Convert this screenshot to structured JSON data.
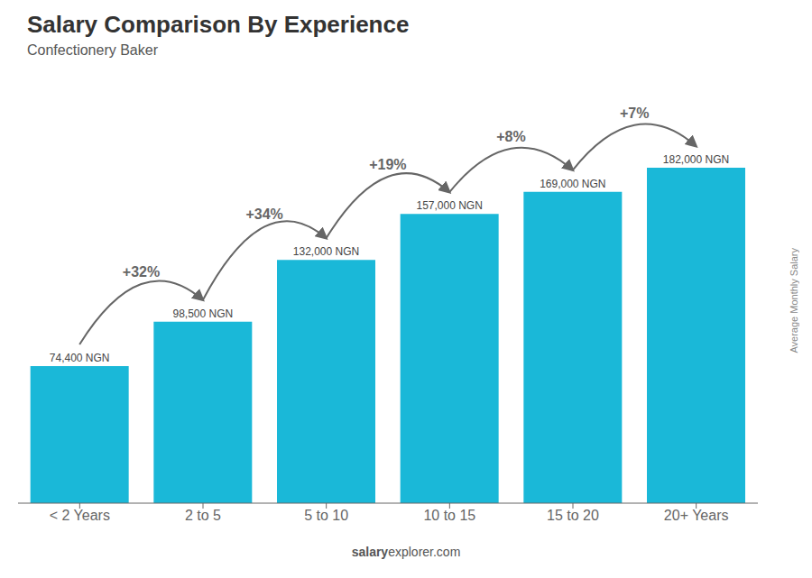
{
  "chart_data": {
    "type": "bar",
    "title": "Salary Comparison By Experience",
    "subtitle": "Confectionery Baker",
    "categories": [
      "< 2 Years",
      "2 to 5",
      "5 to 10",
      "10 to 15",
      "15 to 20",
      "20+ Years"
    ],
    "values": [
      74400,
      98500,
      132000,
      157000,
      169000,
      182000
    ],
    "value_labels": [
      "74,400 NGN",
      "98,500 NGN",
      "132,000 NGN",
      "157,000 NGN",
      "169,000 NGN",
      "182,000 NGN"
    ],
    "data_labels": true,
    "annotations": [
      "+32%",
      "+34%",
      "+19%",
      "+8%",
      "+7%"
    ],
    "ylabel": "Average Monthly Salary",
    "footer": [
      "salary",
      "explorer.com"
    ],
    "color": "#1ab8d8",
    "ylim": [
      0,
      230000
    ],
    "grid": false,
    "tick_labels": "x"
  }
}
